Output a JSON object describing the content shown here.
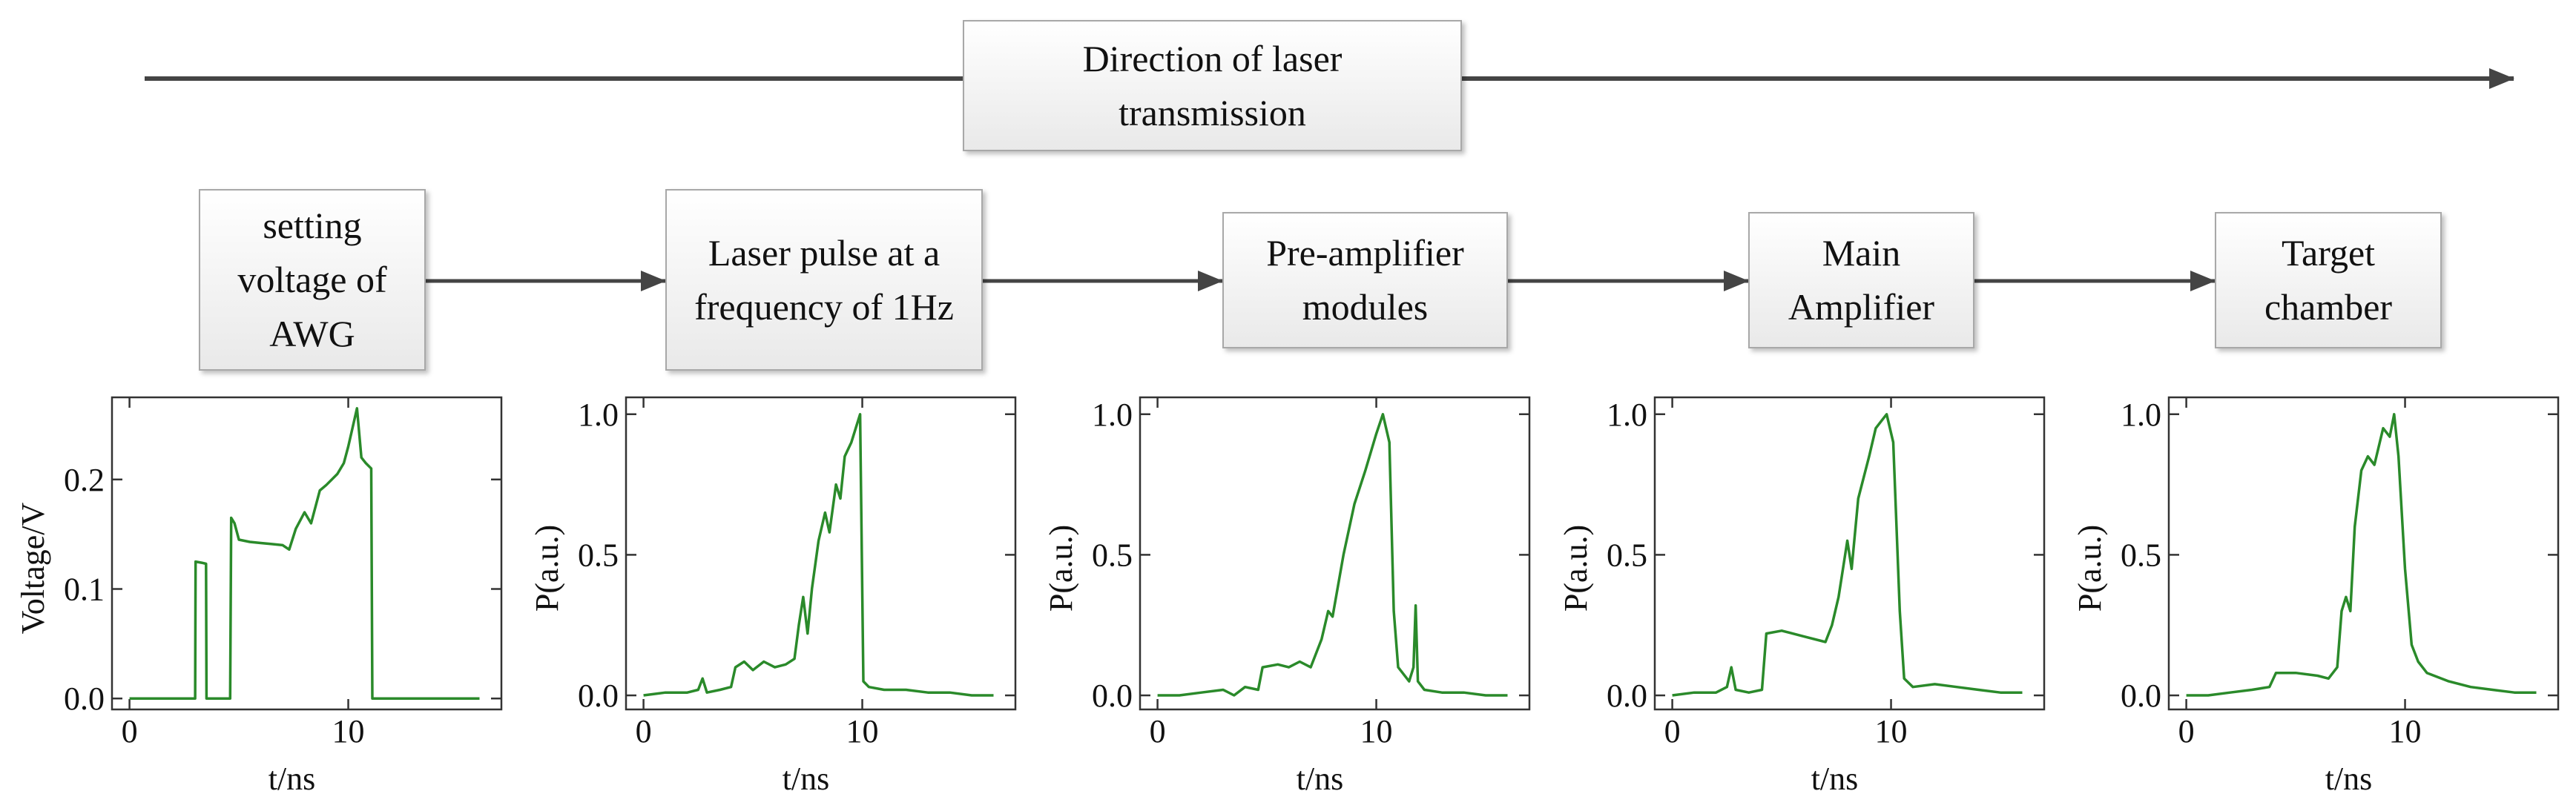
{
  "direction_label": "Direction of laser transmission",
  "nodes": [
    {
      "label": "setting voltage of AWG"
    },
    {
      "label": "Laser pulse at a frequency of 1Hz"
    },
    {
      "label": "Pre-amplifier modules"
    },
    {
      "label": "Main Amplifier"
    },
    {
      "label": "Target chamber"
    }
  ],
  "chart_data": [
    {
      "type": "line",
      "xlabel": "t/ns",
      "ylabel": "Voltage/V",
      "color": "#2a8a2a",
      "x": [
        0,
        3,
        3.02,
        3.3,
        3.5,
        3.52,
        4.6,
        4.65,
        4.8,
        5,
        5.5,
        6,
        6.5,
        7,
        7.3,
        7.6,
        8,
        8.3,
        8.7,
        9,
        9.5,
        9.8,
        10,
        10.4,
        10.6,
        10.8,
        11.05,
        11.1,
        16
      ],
      "values": [
        0,
        0,
        0.125,
        0.124,
        0.123,
        0,
        0,
        0.165,
        0.16,
        0.145,
        0.143,
        0.142,
        0.141,
        0.14,
        0.136,
        0.155,
        0.17,
        0.16,
        0.19,
        0.195,
        0.205,
        0.215,
        0.23,
        0.265,
        0.22,
        0.215,
        0.21,
        0,
        0
      ],
      "xlim": [
        -0.8,
        17
      ],
      "ylim": [
        -0.01,
        0.275
      ],
      "xticks": [
        0,
        10
      ],
      "yticks": [
        {
          "value": 0,
          "label": "0.0"
        },
        0.1,
        0.2
      ]
    },
    {
      "type": "line",
      "xlabel": "t/ns",
      "ylabel": "P(a.u.)",
      "color": "#2a8a2a",
      "x": [
        0,
        1,
        2,
        2.5,
        2.7,
        2.9,
        3.5,
        4,
        4.2,
        4.6,
        5,
        5.5,
        6,
        6.5,
        6.9,
        7.1,
        7.3,
        7.5,
        7.7,
        8,
        8.3,
        8.5,
        8.8,
        9,
        9.2,
        9.5,
        9.7,
        9.9,
        10.05,
        10.3,
        11,
        12,
        13,
        14,
        15,
        16
      ],
      "values": [
        0,
        0.01,
        0.01,
        0.02,
        0.06,
        0.01,
        0.02,
        0.03,
        0.1,
        0.12,
        0.09,
        0.12,
        0.1,
        0.11,
        0.13,
        0.25,
        0.35,
        0.22,
        0.38,
        0.55,
        0.65,
        0.58,
        0.75,
        0.7,
        0.85,
        0.9,
        0.95,
        1.0,
        0.05,
        0.03,
        0.02,
        0.02,
        0.01,
        0.01,
        0.0,
        0.0
      ],
      "xlim": [
        -0.8,
        17
      ],
      "ylim": [
        -0.05,
        1.06
      ],
      "xticks": [
        0,
        10
      ],
      "yticks": [
        {
          "value": 0,
          "label": "0.0"
        },
        0.5,
        {
          "value": 1,
          "label": "1.0"
        }
      ]
    },
    {
      "type": "line",
      "xlabel": "t/ns",
      "ylabel": "P(a.u.)",
      "color": "#2a8a2a",
      "x": [
        0,
        1,
        2,
        3,
        3.5,
        4,
        4.6,
        4.8,
        5.5,
        6,
        6.5,
        7,
        7.5,
        7.8,
        8,
        8.5,
        9,
        9.5,
        10,
        10.3,
        10.6,
        10.8,
        11,
        11.5,
        11.7,
        11.8,
        11.9,
        12.2,
        13,
        14,
        15,
        16
      ],
      "values": [
        0,
        0,
        0.01,
        0.02,
        0.0,
        0.03,
        0.02,
        0.1,
        0.11,
        0.1,
        0.12,
        0.1,
        0.2,
        0.3,
        0.28,
        0.5,
        0.68,
        0.8,
        0.93,
        1.0,
        0.9,
        0.3,
        0.1,
        0.05,
        0.1,
        0.32,
        0.05,
        0.02,
        0.01,
        0.01,
        0.0,
        0.0
      ],
      "xlim": [
        -0.8,
        17
      ],
      "ylim": [
        -0.05,
        1.06
      ],
      "xticks": [
        0,
        10
      ],
      "yticks": [
        {
          "value": 0,
          "label": "0.0"
        },
        0.5,
        {
          "value": 1,
          "label": "1.0"
        }
      ]
    },
    {
      "type": "line",
      "xlabel": "t/ns",
      "ylabel": "P(a.u.)",
      "color": "#2a8a2a",
      "x": [
        0,
        1,
        2,
        2.5,
        2.7,
        2.9,
        3.5,
        4.1,
        4.3,
        5,
        6,
        7,
        7.3,
        7.6,
        8,
        8.2,
        8.5,
        9,
        9.3,
        9.6,
        9.8,
        10.1,
        10.4,
        10.6,
        11,
        12,
        13,
        14,
        15,
        16
      ],
      "values": [
        0,
        0.01,
        0.01,
        0.03,
        0.1,
        0.02,
        0.01,
        0.02,
        0.22,
        0.23,
        0.21,
        0.19,
        0.25,
        0.35,
        0.55,
        0.45,
        0.7,
        0.85,
        0.95,
        0.98,
        1.0,
        0.9,
        0.3,
        0.06,
        0.03,
        0.04,
        0.03,
        0.02,
        0.01,
        0.01
      ],
      "xlim": [
        -0.8,
        17
      ],
      "ylim": [
        -0.05,
        1.06
      ],
      "xticks": [
        0,
        10
      ],
      "yticks": [
        {
          "value": 0,
          "label": "0.0"
        },
        0.5,
        {
          "value": 1,
          "label": "1.0"
        }
      ]
    },
    {
      "type": "line",
      "xlabel": "t/ns",
      "ylabel": "P(a.u.)",
      "color": "#2a8a2a",
      "x": [
        0,
        1,
        2,
        3,
        3.8,
        4.1,
        5,
        6,
        6.5,
        6.9,
        7.1,
        7.3,
        7.5,
        7.7,
        8,
        8.3,
        8.6,
        9,
        9.3,
        9.5,
        9.7,
        10,
        10.3,
        10.6,
        11,
        12,
        13,
        14,
        15,
        16
      ],
      "values": [
        0,
        0,
        0.01,
        0.02,
        0.03,
        0.08,
        0.08,
        0.07,
        0.06,
        0.1,
        0.3,
        0.35,
        0.3,
        0.6,
        0.8,
        0.85,
        0.82,
        0.95,
        0.92,
        1.0,
        0.85,
        0.45,
        0.18,
        0.12,
        0.08,
        0.05,
        0.03,
        0.02,
        0.01,
        0.01
      ],
      "xlim": [
        -0.8,
        17
      ],
      "ylim": [
        -0.05,
        1.06
      ],
      "xticks": [
        0,
        10
      ],
      "yticks": [
        {
          "value": 0,
          "label": "0.0"
        },
        0.5,
        {
          "value": 1,
          "label": "1.0"
        }
      ]
    }
  ]
}
